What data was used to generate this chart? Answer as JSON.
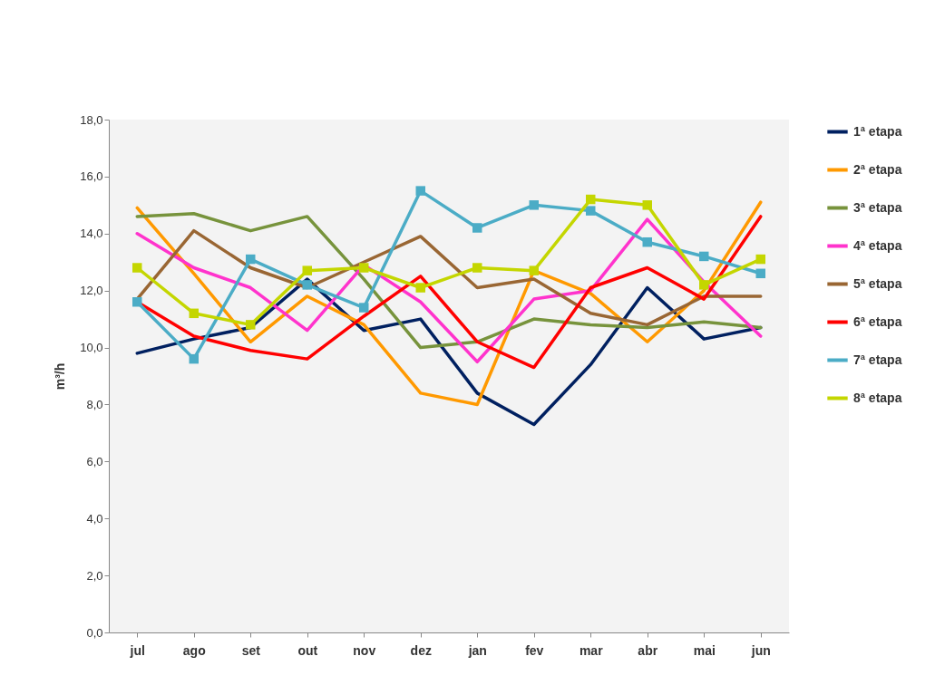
{
  "chart_data": {
    "type": "line",
    "ylabel": "m³/h",
    "categories": [
      "jul",
      "ago",
      "set",
      "out",
      "nov",
      "dez",
      "jan",
      "fev",
      "mar",
      "abr",
      "mai",
      "jun"
    ],
    "series": [
      {
        "name": "1ª etapa",
        "color": "#002060",
        "values": [
          9.8,
          10.3,
          10.7,
          12.4,
          10.6,
          11.0,
          8.4,
          7.3,
          9.4,
          12.1,
          10.3,
          10.7
        ]
      },
      {
        "name": "2ª etapa",
        "color": "#ff9900",
        "values": [
          14.9,
          12.6,
          10.2,
          11.8,
          10.8,
          8.4,
          8.0,
          12.7,
          11.9,
          10.2,
          12.0,
          15.1
        ]
      },
      {
        "name": "3ª etapa",
        "color": "#77933c",
        "values": [
          14.6,
          14.7,
          14.1,
          14.6,
          12.4,
          10.0,
          10.2,
          11.0,
          10.8,
          10.7,
          10.9,
          10.7
        ]
      },
      {
        "name": "4ª etapa",
        "color": "#ff33cc",
        "values": [
          14.0,
          12.8,
          12.1,
          10.6,
          12.9,
          11.6,
          9.5,
          11.7,
          12.0,
          14.5,
          12.3,
          10.4
        ]
      },
      {
        "name": "5ª etapa",
        "color": "#996633",
        "values": [
          11.7,
          14.1,
          12.8,
          12.1,
          13.0,
          13.9,
          12.1,
          12.4,
          11.2,
          10.8,
          11.8,
          11.8
        ]
      },
      {
        "name": "6ª etapa",
        "color": "#ff0000",
        "values": [
          11.6,
          10.4,
          9.9,
          9.6,
          11.1,
          12.5,
          10.2,
          9.3,
          12.1,
          12.8,
          11.7,
          14.6
        ]
      },
      {
        "name": "7ª etapa",
        "color": "#4bacc6",
        "marker": "square",
        "values": [
          11.6,
          9.6,
          13.1,
          12.2,
          11.4,
          15.5,
          14.2,
          15.0,
          14.8,
          13.7,
          13.2,
          12.6
        ]
      },
      {
        "name": "8ª etapa",
        "color": "#c4d600",
        "marker": "square",
        "values": [
          12.8,
          11.2,
          10.8,
          12.7,
          12.8,
          12.1,
          12.8,
          12.7,
          15.2,
          15.0,
          12.2,
          13.1
        ]
      }
    ],
    "ylim": [
      0,
      18
    ],
    "yticks": [
      {
        "value": 0,
        "label": "0,0"
      },
      {
        "value": 2,
        "label": "2,0"
      },
      {
        "value": 4,
        "label": "4,0"
      },
      {
        "value": 6,
        "label": "6,0"
      },
      {
        "value": 8,
        "label": "8,0"
      },
      {
        "value": 10,
        "label": "10,0"
      },
      {
        "value": 12,
        "label": "12,0"
      },
      {
        "value": 14,
        "label": "14,0"
      },
      {
        "value": 16,
        "label": "16,0"
      },
      {
        "value": 18,
        "label": "18,0"
      }
    ],
    "grid": false,
    "legend": "right"
  }
}
